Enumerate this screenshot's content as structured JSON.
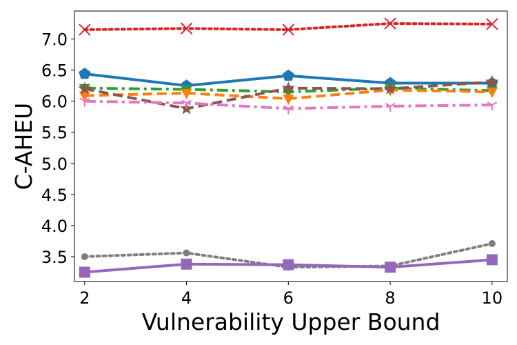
{
  "chart_data": {
    "type": "line",
    "title": "",
    "xlabel": "Vulnerability Upper Bound",
    "ylabel": "C-AHEU",
    "x": [
      2,
      4,
      6,
      8,
      10
    ],
    "x_ticks": [
      2,
      4,
      6,
      8,
      10
    ],
    "y_ticks": [
      3.5,
      4.0,
      4.5,
      5.0,
      5.5,
      6.0,
      6.5,
      7.0
    ],
    "y_tick_labels": [
      "3.5",
      "4.0",
      "4.5",
      "5.0",
      "5.5",
      "6.0",
      "6.5",
      "7.0"
    ],
    "x_tick_labels": [
      "2",
      "4",
      "6",
      "8",
      "10"
    ],
    "xlim": [
      1.8,
      10.3
    ],
    "ylim": [
      3.1,
      7.45
    ],
    "grid": false,
    "legend": "none",
    "series": [
      {
        "name": "red-x-dotted",
        "color": "#d62728",
        "line_style": "dotted",
        "marker": "x",
        "values": [
          7.15,
          7.17,
          7.15,
          7.25,
          7.24
        ]
      },
      {
        "name": "blue-pentagon-solid",
        "color": "#1f77b4",
        "line_style": "solid",
        "marker": "pentagon",
        "values": [
          6.44,
          6.25,
          6.41,
          6.29,
          6.29
        ]
      },
      {
        "name": "green-triangle-dashdot",
        "color": "#2ca02c",
        "line_style": "dashdot",
        "marker": "triangle-down",
        "values": [
          6.21,
          6.19,
          6.15,
          6.21,
          6.17
        ]
      },
      {
        "name": "orange-diamond-dashed",
        "color": "#ff7f0e",
        "line_style": "dashed",
        "marker": "triangle-down-filled",
        "values": [
          6.09,
          6.13,
          6.04,
          6.18,
          6.15
        ]
      },
      {
        "name": "brown-star-dashed",
        "color": "#8c564b",
        "line_style": "dashed",
        "marker": "star",
        "values": [
          6.2,
          5.88,
          6.21,
          6.2,
          6.31
        ]
      },
      {
        "name": "pink-tri-dashdot",
        "color": "#e377c2",
        "line_style": "dashdot",
        "marker": "tri-down",
        "values": [
          6.0,
          5.97,
          5.88,
          5.92,
          5.94
        ]
      },
      {
        "name": "gray-circle-dotted",
        "color": "#7f7f7f",
        "line_style": "dotted",
        "marker": "circle",
        "values": [
          3.5,
          3.56,
          3.33,
          3.35,
          3.71
        ]
      },
      {
        "name": "purple-square-solid",
        "color": "#9467bd",
        "line_style": "solid",
        "marker": "square",
        "values": [
          3.25,
          3.38,
          3.37,
          3.33,
          3.45
        ]
      }
    ]
  }
}
